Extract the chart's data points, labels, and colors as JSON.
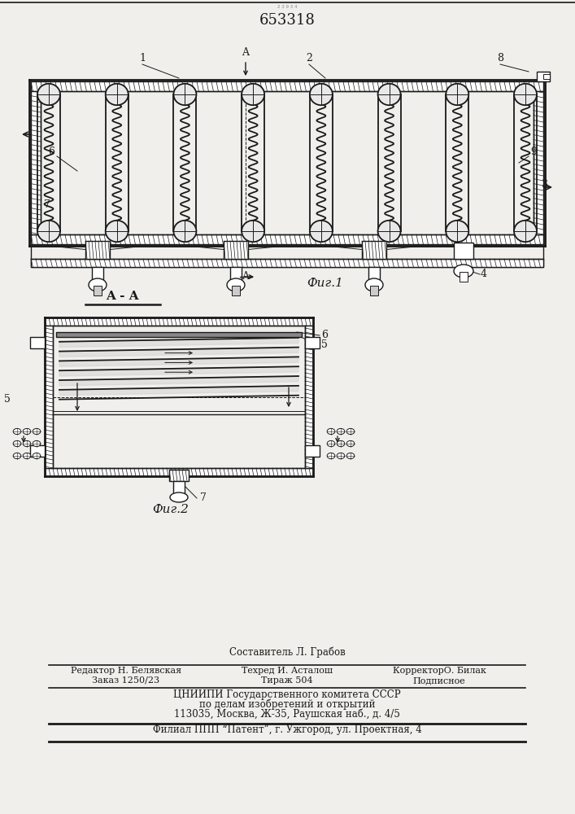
{
  "title_number": "653318",
  "bg_color": "#f0efeb",
  "line_color": "#1a1a1a",
  "fig1_label": "Фиг.1",
  "fig2_label": "Фиг.2",
  "section_label": "A - A",
  "footer_line1": "Составитель Л. Грабов",
  "footer_line2a": "Редактор Н. Белявская",
  "footer_line2b": "Техред И. Асталош",
  "footer_line2c": "КорректорО. Билак",
  "footer_line3a": "Заказ 1250/23",
  "footer_line3b": "Тираж 504",
  "footer_line3c": "Подписное",
  "footer_line4": "ЦНИИПИ Государственного комитета СССР",
  "footer_line5": "по делам изобретений и открытий",
  "footer_line6": "113035, Москва, Ж-35, Раушская наб., д. 4/5",
  "footer_line7": "Филиал ППП “Патент”, г. Ужгород, ул. Проектная, 4"
}
